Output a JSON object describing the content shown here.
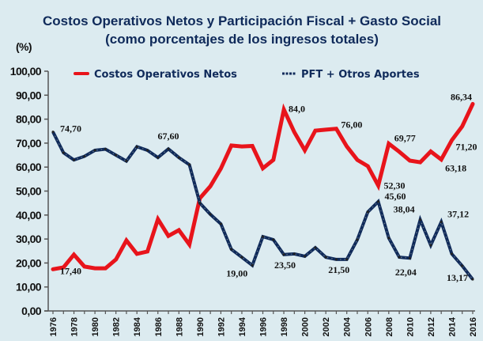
{
  "chart_data": {
    "type": "line",
    "title": "Costos Operativos Netos  y Participación Fiscal  + Gasto Social",
    "subtitle": "(como porcentajes de los ingresos totales)",
    "ylabel": "(%)",
    "xlabel": "",
    "ylim": [
      0,
      100
    ],
    "yticks": [
      "0,00",
      "10,00",
      "20,00",
      "30,00",
      "40,00",
      "50,00",
      "60,00",
      "70,00",
      "80,00",
      "90,00",
      "100,00"
    ],
    "xtick_labels": [
      "1976",
      "1978",
      "1980",
      "1982",
      "1984",
      "1986",
      "1988",
      "1990",
      "1992",
      "1994",
      "1996",
      "1998",
      "2000",
      "2002",
      "2004",
      "2006",
      "2008",
      "2010",
      "2012",
      "2014",
      "2016"
    ],
    "x": [
      1976,
      1977,
      1978,
      1979,
      1980,
      1981,
      1982,
      1983,
      1984,
      1985,
      1986,
      1987,
      1988,
      1989,
      1990,
      1991,
      1992,
      1993,
      1994,
      1995,
      1996,
      1997,
      1998,
      1999,
      2000,
      2001,
      2002,
      2003,
      2004,
      2005,
      2006,
      2007,
      2008,
      2009,
      2010,
      2011,
      2012,
      2013,
      2014,
      2015,
      2016
    ],
    "grid": false,
    "legend_position": "top",
    "series": [
      {
        "name": "Costos Operativos Netos",
        "color": "#e8141b",
        "style": "solid",
        "values": [
          17.4,
          18.2,
          23.5,
          18.5,
          17.8,
          17.8,
          21.5,
          29.4,
          23.8,
          24.8,
          38.3,
          31.3,
          33.7,
          27.7,
          47.0,
          52.0,
          59.4,
          69.0,
          68.6,
          68.8,
          59.5,
          63.0,
          84.0,
          74.6,
          67.0,
          75.2,
          75.6,
          76.0,
          68.6,
          63.0,
          60.4,
          52.3,
          69.77,
          66.4,
          62.7,
          62.0,
          66.5,
          63.18,
          71.2,
          77.0,
          86.34
        ],
        "labels": [
          {
            "year": 1976,
            "text": "17,40"
          },
          {
            "year": 1998,
            "text": "84,0"
          },
          {
            "year": 2003,
            "text": "76,00"
          },
          {
            "year": 2007,
            "text": "52,30"
          },
          {
            "year": 2008,
            "text": "69,77"
          },
          {
            "year": 2013,
            "text": "63,18"
          },
          {
            "year": 2014,
            "text": "71,20"
          },
          {
            "year": 2016,
            "text": "86,34"
          }
        ]
      },
      {
        "name": "PFT + Otros Aportes",
        "color": "#0f2a5a",
        "style": "dotted-dark",
        "values": [
          74.7,
          66.0,
          63.0,
          64.5,
          67.0,
          67.5,
          65.0,
          62.5,
          68.5,
          67.0,
          64.0,
          67.6,
          64.0,
          61.0,
          45.0,
          40.3,
          36.3,
          25.7,
          22.4,
          19.0,
          31.0,
          29.7,
          23.5,
          23.8,
          22.8,
          26.4,
          22.4,
          21.5,
          21.5,
          29.7,
          41.3,
          45.6,
          30.4,
          22.4,
          22.04,
          38.04,
          27.4,
          37.12,
          23.8,
          18.8,
          13.17
        ],
        "labels": [
          {
            "year": 1976,
            "text": "74,70"
          },
          {
            "year": 1987,
            "text": "67,60"
          },
          {
            "year": 1995,
            "text": "19,00"
          },
          {
            "year": 1998,
            "text": "23,50"
          },
          {
            "year": 2004,
            "text": "21,50"
          },
          {
            "year": 2007,
            "text": "45,60"
          },
          {
            "year": 2010,
            "text": "22,04"
          },
          {
            "year": 2011,
            "text": "38,04"
          },
          {
            "year": 2013,
            "text": "37,12"
          },
          {
            "year": 2016,
            "text": "13,17"
          }
        ]
      }
    ]
  }
}
